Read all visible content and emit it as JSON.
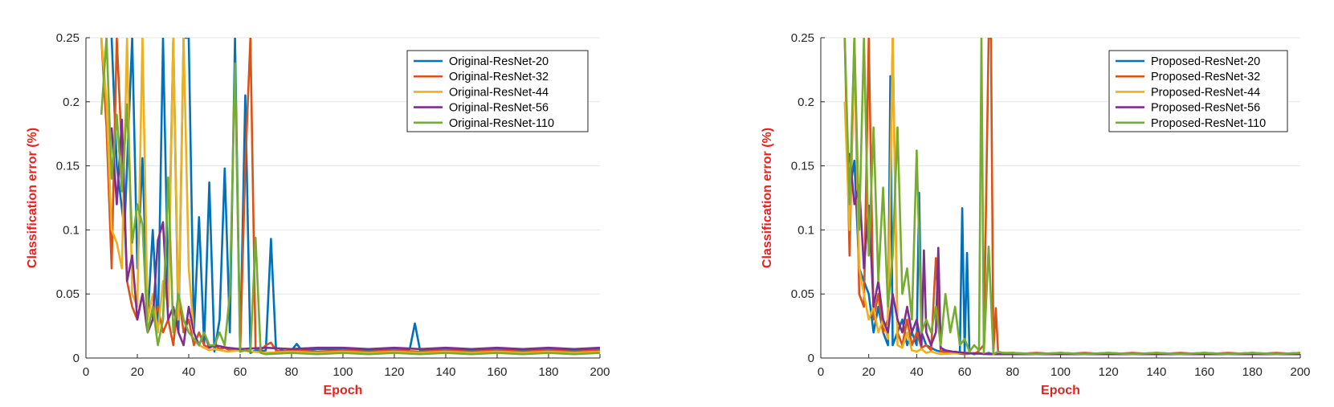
{
  "chart_data": [
    {
      "type": "line",
      "xlabel": "Epoch",
      "ylabel": "Classification error (%)",
      "xlim": [
        0,
        200
      ],
      "ylim": [
        0,
        0.25
      ],
      "xticks": [
        "0",
        "20",
        "40",
        "60",
        "80",
        "100",
        "120",
        "140",
        "160",
        "180",
        "200"
      ],
      "yticks": [
        "0",
        "0.05",
        "0.1",
        "0.15",
        "0.2",
        "0.25"
      ],
      "grid": true,
      "legend": "top-right",
      "series": [
        {
          "name": "Original-ResNet-20",
          "color": "#0072BD",
          "x": [
            10,
            12,
            15,
            18,
            20,
            22,
            24,
            26,
            28,
            30,
            32,
            34,
            36,
            38,
            40,
            42,
            44,
            46,
            48,
            50,
            52,
            54,
            56,
            58,
            60,
            62,
            64,
            66,
            68,
            70,
            72,
            74,
            76,
            78,
            80,
            82,
            84,
            90,
            100,
            110,
            120,
            126,
            128,
            130,
            140,
            150,
            160,
            170,
            180,
            190,
            200
          ],
          "y": [
            0.25,
            0.15,
            0.1,
            0.25,
            0.07,
            0.156,
            0.03,
            0.1,
            0.02,
            0.25,
            0.05,
            0.25,
            0.02,
            0.25,
            0.25,
            0.02,
            0.11,
            0.01,
            0.137,
            0.005,
            0.03,
            0.148,
            0.02,
            0.25,
            0.005,
            0.205,
            0.004,
            0.006,
            0.005,
            0.006,
            0.093,
            0.005,
            0.006,
            0.005,
            0.006,
            0.011,
            0.006,
            0.007,
            0.007,
            0.006,
            0.007,
            0.007,
            0.027,
            0.006,
            0.007,
            0.006,
            0.007,
            0.006,
            0.007,
            0.006,
            0.007
          ]
        },
        {
          "name": "Original-ResNet-32",
          "color": "#D95319",
          "x": [
            6,
            8,
            10,
            12,
            14,
            16,
            18,
            20,
            22,
            24,
            26,
            28,
            30,
            32,
            34,
            36,
            38,
            40,
            42,
            44,
            46,
            48,
            50,
            52,
            54,
            56,
            58,
            60,
            62,
            64,
            66,
            68,
            70,
            72,
            74,
            76,
            80,
            90,
            100,
            110,
            120,
            130,
            140,
            150,
            160,
            170,
            180,
            190,
            200
          ],
          "y": [
            0.25,
            0.18,
            0.07,
            0.25,
            0.16,
            0.06,
            0.04,
            0.03,
            0.05,
            0.02,
            0.03,
            0.04,
            0.02,
            0.03,
            0.01,
            0.05,
            0.02,
            0.03,
            0.01,
            0.02,
            0.01,
            0.008,
            0.01,
            0.007,
            0.008,
            0.006,
            0.007,
            0.006,
            0.15,
            0.25,
            0.008,
            0.006,
            0.01,
            0.012,
            0.006,
            0.005,
            0.006,
            0.005,
            0.006,
            0.005,
            0.006,
            0.005,
            0.006,
            0.005,
            0.006,
            0.005,
            0.006,
            0.005,
            0.006
          ]
        },
        {
          "name": "Original-ResNet-44",
          "color": "#EDB120",
          "x": [
            6,
            8,
            10,
            12,
            14,
            16,
            18,
            20,
            22,
            24,
            26,
            28,
            30,
            32,
            34,
            36,
            38,
            40,
            42,
            44,
            46,
            48,
            50,
            55,
            60,
            65,
            70,
            80,
            90,
            100,
            110,
            120,
            130,
            140,
            150,
            160,
            170,
            180,
            190,
            200
          ],
          "y": [
            0.25,
            0.2,
            0.1,
            0.09,
            0.07,
            0.25,
            0.05,
            0.04,
            0.25,
            0.03,
            0.05,
            0.02,
            0.06,
            0.04,
            0.25,
            0.03,
            0.25,
            0.07,
            0.02,
            0.01,
            0.008,
            0.006,
            0.007,
            0.005,
            0.006,
            0.005,
            0.004,
            0.005,
            0.004,
            0.005,
            0.004,
            0.005,
            0.004,
            0.005,
            0.004,
            0.005,
            0.004,
            0.005,
            0.004,
            0.005
          ]
        },
        {
          "name": "Original-ResNet-56",
          "color": "#7E2F8E",
          "x": [
            10,
            12,
            14,
            16,
            18,
            20,
            22,
            24,
            26,
            28,
            30,
            32,
            34,
            36,
            38,
            40,
            42,
            44,
            46,
            48,
            50,
            55,
            60,
            70,
            80,
            90,
            100,
            110,
            120,
            130,
            140,
            150,
            160,
            170,
            180,
            190,
            200
          ],
          "y": [
            0.18,
            0.12,
            0.186,
            0.06,
            0.08,
            0.03,
            0.05,
            0.02,
            0.03,
            0.092,
            0.106,
            0.03,
            0.04,
            0.02,
            0.01,
            0.04,
            0.02,
            0.01,
            0.02,
            0.008,
            0.01,
            0.008,
            0.007,
            0.008,
            0.007,
            0.008,
            0.008,
            0.007,
            0.008,
            0.007,
            0.008,
            0.007,
            0.008,
            0.007,
            0.008,
            0.007,
            0.008
          ]
        },
        {
          "name": "Original-ResNet-110",
          "color": "#77AC30",
          "x": [
            6,
            8,
            10,
            12,
            14,
            16,
            18,
            20,
            22,
            24,
            26,
            28,
            30,
            32,
            34,
            36,
            38,
            40,
            42,
            44,
            46,
            48,
            50,
            52,
            54,
            56,
            58,
            60,
            62,
            64,
            66,
            68,
            70,
            80,
            90,
            100,
            110,
            120,
            130,
            140,
            150,
            160,
            170,
            180,
            190,
            200
          ],
          "y": [
            0.19,
            0.25,
            0.14,
            0.19,
            0.13,
            0.198,
            0.09,
            0.12,
            0.104,
            0.02,
            0.04,
            0.01,
            0.03,
            0.141,
            0.02,
            0.05,
            0.03,
            0.02,
            0.015,
            0.01,
            0.02,
            0.01,
            0.01,
            0.02,
            0.01,
            0.05,
            0.23,
            0.005,
            0.006,
            0.005,
            0.094,
            0.004,
            0.003,
            0.004,
            0.003,
            0.004,
            0.003,
            0.004,
            0.003,
            0.004,
            0.003,
            0.004,
            0.003,
            0.004,
            0.003,
            0.004
          ]
        }
      ]
    },
    {
      "type": "line",
      "xlabel": "Epoch",
      "ylabel": "Classification error (%)",
      "xlim": [
        0,
        200
      ],
      "ylim": [
        0,
        0.25
      ],
      "xticks": [
        "0",
        "20",
        "40",
        "60",
        "80",
        "100",
        "120",
        "140",
        "160",
        "180",
        "200"
      ],
      "yticks": [
        "0",
        "0.05",
        "0.1",
        "0.15",
        "0.2",
        "0.25"
      ],
      "grid": true,
      "legend": "top-right",
      "series": [
        {
          "name": "Proposed-ResNet-20",
          "color": "#0072BD",
          "x": [
            12,
            14,
            16,
            18,
            20,
            22,
            24,
            26,
            28,
            29,
            30,
            32,
            34,
            36,
            38,
            40,
            41,
            42,
            44,
            46,
            48,
            50,
            52,
            54,
            56,
            58,
            59,
            60,
            61,
            62,
            64,
            66,
            68,
            70,
            72,
            74,
            76,
            80,
            90,
            100,
            110,
            120,
            130,
            140,
            150,
            160,
            170,
            180,
            190,
            200
          ],
          "y": [
            0.13,
            0.154,
            0.07,
            0.06,
            0.05,
            0.02,
            0.04,
            0.02,
            0.01,
            0.22,
            0.01,
            0.02,
            0.03,
            0.01,
            0.02,
            0.01,
            0.129,
            0.02,
            0.01,
            0.008,
            0.006,
            0.005,
            0.006,
            0.004,
            0.005,
            0.004,
            0.117,
            0.005,
            0.082,
            0.004,
            0.003,
            0.004,
            0.003,
            0.004,
            0.003,
            0.004,
            0.003,
            0.004,
            0.003,
            0.004,
            0.003,
            0.004,
            0.003,
            0.004,
            0.003,
            0.004,
            0.003,
            0.004,
            0.003,
            0.004
          ]
        },
        {
          "name": "Proposed-ResNet-32",
          "color": "#D95319",
          "x": [
            10,
            12,
            14,
            16,
            18,
            20,
            22,
            24,
            26,
            28,
            30,
            32,
            34,
            36,
            38,
            40,
            42,
            44,
            46,
            48,
            50,
            55,
            60,
            65,
            68,
            70,
            71,
            72,
            73,
            74,
            76,
            80,
            90,
            100,
            110,
            120,
            130,
            140,
            150,
            160,
            170,
            180,
            190,
            200
          ],
          "y": [
            0.25,
            0.08,
            0.25,
            0.05,
            0.04,
            0.25,
            0.03,
            0.05,
            0.02,
            0.03,
            0.25,
            0.02,
            0.01,
            0.03,
            0.01,
            0.02,
            0.008,
            0.01,
            0.006,
            0.078,
            0.005,
            0.004,
            0.003,
            0.004,
            0.01,
            0.25,
            0.25,
            0.005,
            0.039,
            0.003,
            0.004,
            0.003,
            0.004,
            0.003,
            0.004,
            0.003,
            0.004,
            0.003,
            0.004,
            0.003,
            0.004,
            0.003,
            0.004,
            0.003
          ]
        },
        {
          "name": "Proposed-ResNet-44",
          "color": "#EDB120",
          "x": [
            10,
            12,
            14,
            16,
            18,
            20,
            22,
            24,
            26,
            28,
            30,
            32,
            34,
            36,
            38,
            40,
            42,
            44,
            46,
            48,
            50,
            60,
            70,
            80,
            90,
            100,
            110,
            120,
            130,
            140,
            150,
            160,
            170,
            180,
            190,
            200
          ],
          "y": [
            0.2,
            0.1,
            0.25,
            0.07,
            0.05,
            0.03,
            0.04,
            0.02,
            0.03,
            0.015,
            0.25,
            0.01,
            0.008,
            0.02,
            0.006,
            0.005,
            0.007,
            0.004,
            0.005,
            0.004,
            0.003,
            0.004,
            0.003,
            0.004,
            0.003,
            0.004,
            0.003,
            0.004,
            0.003,
            0.004,
            0.003,
            0.004,
            0.003,
            0.004,
            0.003,
            0.004
          ]
        },
        {
          "name": "Proposed-ResNet-56",
          "color": "#7E2F8E",
          "x": [
            12,
            14,
            16,
            18,
            20,
            22,
            24,
            26,
            28,
            30,
            32,
            34,
            36,
            38,
            40,
            42,
            43,
            44,
            46,
            48,
            49,
            50,
            52,
            55,
            60,
            70,
            80,
            90,
            100,
            110,
            120,
            130,
            140,
            150,
            160,
            170,
            180,
            190,
            200
          ],
          "y": [
            0.16,
            0.12,
            0.135,
            0.07,
            0.119,
            0.04,
            0.06,
            0.03,
            0.02,
            0.05,
            0.03,
            0.02,
            0.04,
            0.02,
            0.03,
            0.01,
            0.084,
            0.02,
            0.01,
            0.02,
            0.086,
            0.008,
            0.006,
            0.005,
            0.004,
            0.003,
            0.003,
            0.003,
            0.003,
            0.003,
            0.003,
            0.003,
            0.003,
            0.003,
            0.003,
            0.003,
            0.003,
            0.003,
            0.003
          ]
        },
        {
          "name": "Proposed-ResNet-110",
          "color": "#77AC30",
          "x": [
            10,
            12,
            14,
            16,
            18,
            20,
            22,
            24,
            26,
            28,
            30,
            32,
            34,
            36,
            38,
            40,
            42,
            44,
            46,
            48,
            50,
            52,
            54,
            56,
            58,
            60,
            62,
            64,
            66,
            67,
            68,
            70,
            72,
            74,
            76,
            80,
            90,
            100,
            110,
            120,
            130,
            140,
            150,
            160,
            170,
            180,
            190,
            200
          ],
          "y": [
            0.25,
            0.12,
            0.25,
            0.1,
            0.25,
            0.08,
            0.18,
            0.06,
            0.133,
            0.04,
            0.08,
            0.18,
            0.05,
            0.07,
            0.03,
            0.162,
            0.02,
            0.03,
            0.02,
            0.04,
            0.01,
            0.05,
            0.02,
            0.04,
            0.01,
            0.015,
            0.005,
            0.01,
            0.006,
            0.25,
            0.004,
            0.087,
            0.003,
            0.005,
            0.004,
            0.004,
            0.003,
            0.004,
            0.003,
            0.004,
            0.003,
            0.004,
            0.003,
            0.004,
            0.003,
            0.004,
            0.003,
            0.004
          ]
        }
      ]
    }
  ]
}
